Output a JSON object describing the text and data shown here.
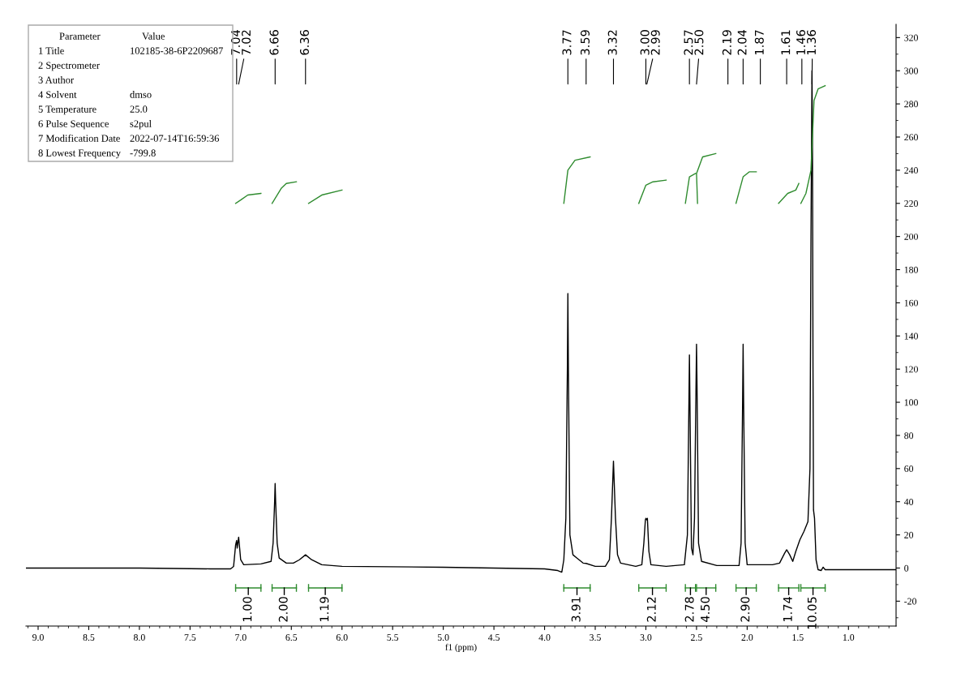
{
  "chart_data": [
    {
      "type": "line",
      "xlabel": "f1 (ppm)",
      "xlim": [
        9.12,
        0.53
      ],
      "ylim": [
        -35,
        328
      ],
      "xticks": [
        {
          "value": 9,
          "label": "9.0"
        },
        8.5,
        {
          "value": 8,
          "label": "8.0"
        },
        7.5,
        {
          "value": 7,
          "label": "7.0"
        },
        6.5,
        {
          "value": 6,
          "label": "6.0"
        },
        5.5,
        {
          "value": 5,
          "label": "5.0"
        },
        4.5,
        {
          "value": 4,
          "label": "4.0"
        },
        3.5,
        {
          "value": 3,
          "label": "3.0"
        },
        2.5,
        {
          "value": 2,
          "label": "2.0"
        },
        1.5,
        {
          "value": 1,
          "label": "1.0"
        }
      ],
      "yticks": [
        -20,
        0,
        20,
        40,
        60,
        80,
        100,
        120,
        140,
        160,
        180,
        200,
        220,
        240,
        260,
        280,
        300,
        320
      ],
      "grid": false,
      "legend": false,
      "marker": "none",
      "line_style": "solid",
      "series": [
        {
          "type": "line",
          "color": "#000000",
          "x": [
            9.12,
            8.0,
            7.3,
            7.1,
            7.07,
            7.05,
            7.04,
            7.035,
            7.02,
            7.0,
            6.97,
            6.8,
            6.7,
            6.68,
            6.665,
            6.66,
            6.655,
            6.64,
            6.62,
            6.55,
            6.48,
            6.42,
            6.36,
            6.3,
            6.2,
            6.0,
            5.0,
            4.0,
            3.87,
            3.83,
            3.81,
            3.79,
            3.775,
            3.77,
            3.765,
            3.75,
            3.72,
            3.68,
            3.62,
            3.59,
            3.5,
            3.4,
            3.36,
            3.34,
            3.32,
            3.3,
            3.28,
            3.25,
            3.1,
            3.04,
            3.02,
            3.005,
            3.0,
            2.99,
            2.985,
            2.97,
            2.95,
            2.8,
            2.62,
            2.59,
            2.575,
            2.57,
            2.565,
            2.55,
            2.535,
            2.52,
            2.505,
            2.5,
            2.495,
            2.48,
            2.45,
            2.3,
            2.19,
            2.08,
            2.06,
            2.045,
            2.04,
            2.035,
            2.02,
            2.0,
            1.87,
            1.75,
            1.68,
            1.63,
            1.61,
            1.58,
            1.55,
            1.52,
            1.48,
            1.44,
            1.4,
            1.38,
            1.37,
            1.36,
            1.355,
            1.35,
            1.345,
            1.335,
            1.32,
            1.3,
            1.27,
            1.25,
            1.23,
            1.0,
            0.53
          ],
          "values": [
            0,
            0,
            -0.5,
            -0.5,
            1,
            14,
            16.6,
            12,
            18.6,
            5,
            2,
            2.5,
            4,
            15,
            40,
            51,
            40,
            15,
            6,
            3,
            3,
            5,
            8,
            5,
            2,
            1,
            0.5,
            -0.5,
            -1.5,
            -2.5,
            5,
            30,
            120,
            165.6,
            120,
            20,
            8,
            6,
            3,
            2.8,
            1,
            1,
            5,
            30,
            64.5,
            30,
            8,
            3,
            1,
            2,
            15,
            29,
            30,
            29,
            30,
            10,
            2,
            1,
            2,
            20,
            100,
            128.5,
            100,
            12,
            8,
            30,
            110,
            135,
            110,
            15,
            4,
            1.5,
            1.5,
            1.5,
            15,
            100,
            135,
            100,
            15,
            2,
            2,
            2,
            3,
            9,
            11,
            8,
            4,
            10,
            17,
            22,
            28,
            60,
            200,
            300,
            250,
            120,
            35,
            30,
            5,
            -1,
            -1.5,
            0.5,
            -1,
            -1,
            -1
          ]
        },
        {
          "type": "line",
          "color": "#2e8b2e",
          "x": [
            7.05,
            7.0,
            6.93,
            6.8,
            null,
            6.69,
            6.6,
            6.55,
            6.45,
            null,
            6.33,
            6.2,
            6.0,
            null,
            3.81,
            3.77,
            3.7,
            3.55,
            null,
            3.07,
            3.0,
            2.93,
            2.8,
            null,
            2.61,
            2.57,
            2.51,
            null,
            2.49,
            2.5,
            2.44,
            2.31,
            null,
            2.11,
            2.04,
            1.98,
            1.91,
            null,
            1.69,
            1.6,
            1.52,
            1.49,
            null,
            1.47,
            1.42,
            1.37,
            1.34,
            1.3,
            1.23
          ],
          "values": [
            220,
            222,
            225,
            226,
            null,
            220,
            229,
            232,
            233,
            null,
            220,
            225,
            228,
            null,
            220,
            240,
            246,
            248,
            null,
            220,
            231,
            233,
            234,
            null,
            220,
            236,
            238,
            null,
            220,
            238,
            248,
            250,
            null,
            220,
            236,
            239,
            239,
            null,
            220,
            226,
            228,
            232,
            null,
            220,
            226,
            240,
            282,
            289,
            291
          ]
        }
      ],
      "annotations": [
        {
          "text": "7.04",
          "x": 7.04
        },
        {
          "text": "7.02",
          "x": 7.02
        },
        {
          "text": "6.66",
          "x": 6.66
        },
        {
          "text": "6.36",
          "x": 6.36
        },
        {
          "text": "3.77",
          "x": 3.77
        },
        {
          "text": "3.59",
          "x": 3.59
        },
        {
          "text": "3.32",
          "x": 3.32
        },
        {
          "text": "3.00",
          "x": 3.0
        },
        {
          "text": "2.99",
          "x": 2.99
        },
        {
          "text": "2.57",
          "x": 2.57
        },
        {
          "text": "2.50",
          "x": 2.5
        },
        {
          "text": "2.19",
          "x": 2.19
        },
        {
          "text": "2.04",
          "x": 2.04
        },
        {
          "text": "1.87",
          "x": 1.87
        },
        {
          "text": "1.61",
          "x": 1.61
        },
        {
          "text": "1.46",
          "x": 1.46
        },
        {
          "text": "1.36",
          "x": 1.36
        },
        "1.00",
        "2.00",
        "1.19",
        "3.91",
        "2.12",
        "2.78",
        "4.50",
        "2.90",
        "1.74",
        "10.05"
      ]
    },
    {
      "type": "other",
      "annotations": [
        "Parameter",
        "Value",
        "1 Title",
        "102185-38-6P2209687",
        "2 Spectrometer",
        null,
        "3 Author",
        null,
        "4 Solvent",
        "dmso",
        "5 Temperature",
        "25.0",
        "6 Pulse Sequence",
        "s2pul",
        "7 Modification Date",
        "2022-07-14T16:59:36",
        "8 Lowest Frequency",
        "-799.8"
      ]
    }
  ]
}
